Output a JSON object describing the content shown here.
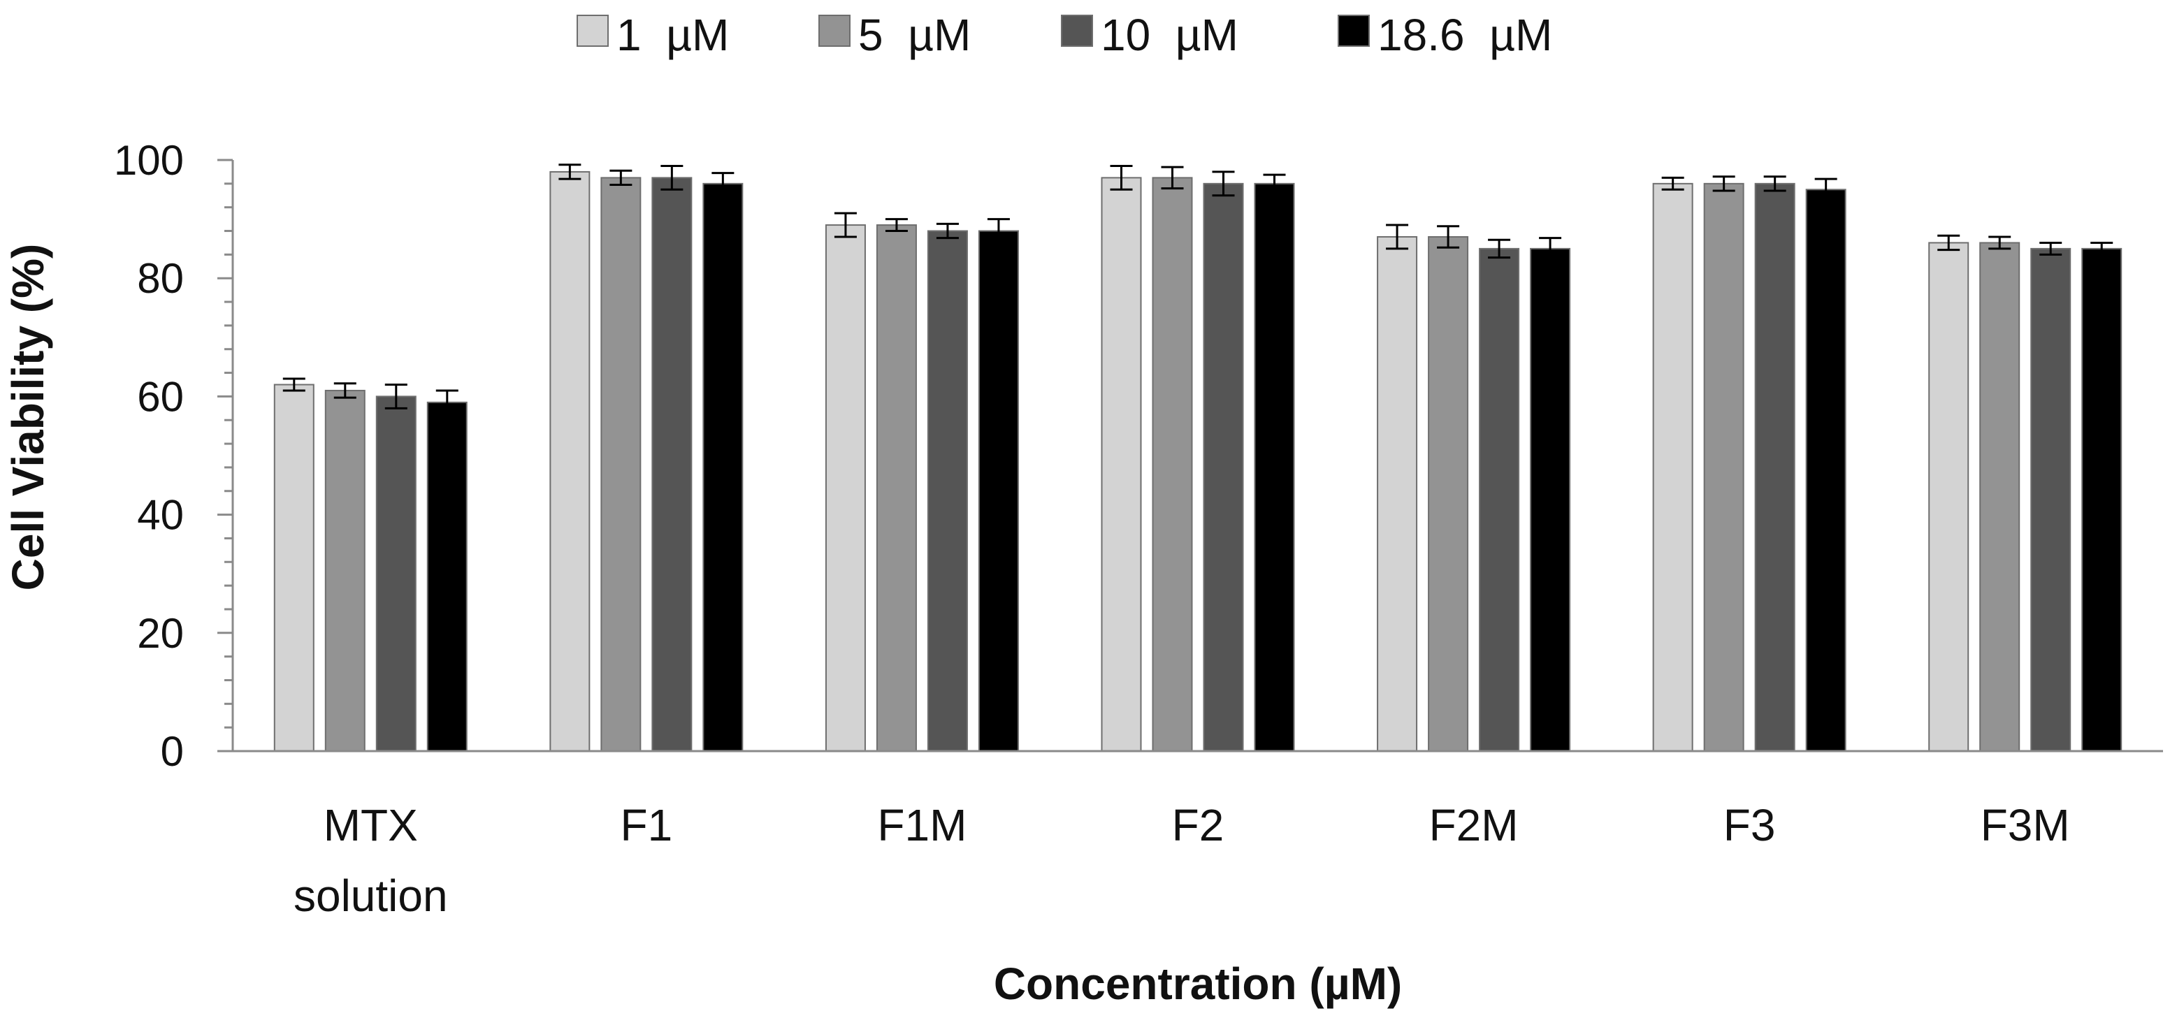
{
  "chart_data": {
    "type": "bar",
    "title": "",
    "xlabel": "Concentration (µM)",
    "ylabel": "Cell Viability (%)",
    "ylim": [
      0,
      100
    ],
    "yticks": [
      0,
      20,
      40,
      60,
      80,
      100
    ],
    "grid": false,
    "legend_position": "top",
    "categories": [
      [
        "MTX",
        "solution"
      ],
      [
        "F1"
      ],
      [
        "F1M"
      ],
      [
        "F2"
      ],
      [
        "F2M"
      ],
      [
        "F3"
      ],
      [
        "F3M"
      ]
    ],
    "series": [
      {
        "name": "1  µM",
        "color": "#d3d3d3",
        "values": [
          62,
          98,
          89,
          97,
          87,
          96,
          86
        ],
        "errors": [
          1.0,
          1.2,
          2.0,
          2.0,
          2.0,
          1.0,
          1.2
        ]
      },
      {
        "name": "5  µM",
        "color": "#939393",
        "values": [
          61,
          97,
          89,
          97,
          87,
          96,
          86
        ],
        "errors": [
          1.2,
          1.2,
          1.0,
          1.8,
          1.8,
          1.2,
          1.0
        ]
      },
      {
        "name": "10  µM",
        "color": "#555555",
        "values": [
          60,
          97,
          88,
          96,
          85,
          96,
          85
        ],
        "errors": [
          2.0,
          2.0,
          1.2,
          2.0,
          1.5,
          1.2,
          1.0
        ]
      },
      {
        "name": "18.6  µM",
        "color": "#000000",
        "values": [
          59,
          96,
          88,
          96,
          85,
          95,
          85
        ],
        "errors": [
          2.0,
          1.8,
          2.0,
          1.5,
          1.8,
          1.8,
          1.0
        ]
      }
    ]
  }
}
